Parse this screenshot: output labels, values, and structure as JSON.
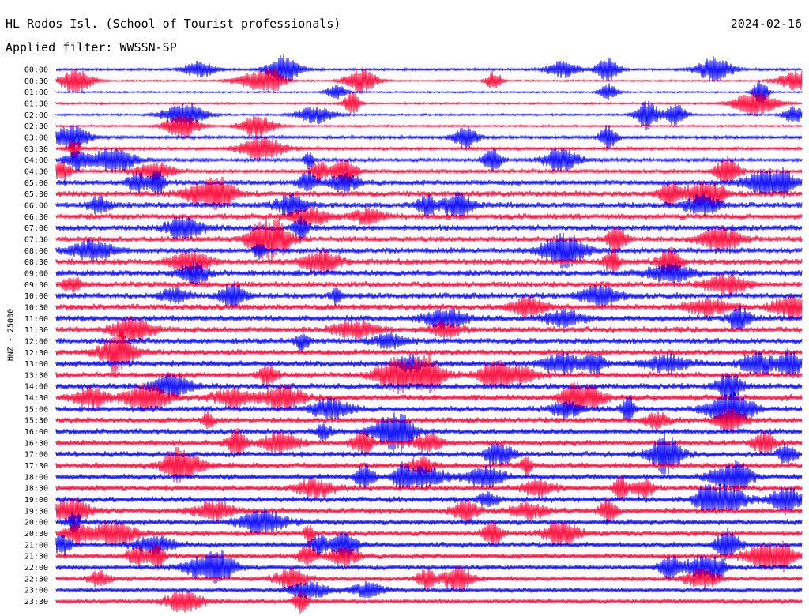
{
  "header": {
    "station": "HL Rodos Isl. (School of Tourist professionals)",
    "date": "2024-02-16",
    "filter": "Applied filter: WWSSN-SP"
  },
  "axis": {
    "ylabel": "HNZ - 25000"
  },
  "chart_data": {
    "type": "line",
    "description_kind": "helicorder",
    "series": [
      {
        "name": "00:00",
        "color": "#0000ff",
        "amplitude": 0.35
      },
      {
        "name": "00:30",
        "color": "#ff0033",
        "amplitude": 0.25
      },
      {
        "name": "01:00",
        "color": "#0000ff",
        "amplitude": 0.25
      },
      {
        "name": "01:30",
        "color": "#ff0033",
        "amplitude": 0.3
      },
      {
        "name": "02:00",
        "color": "#0000ff",
        "amplitude": 0.3
      },
      {
        "name": "02:30",
        "color": "#ff0033",
        "amplitude": 0.3
      },
      {
        "name": "03:00",
        "color": "#0000ff",
        "amplitude": 0.45
      },
      {
        "name": "03:30",
        "color": "#ff0033",
        "amplitude": 0.45
      },
      {
        "name": "04:00",
        "color": "#0000ff",
        "amplitude": 0.5
      },
      {
        "name": "04:30",
        "color": "#ff0033",
        "amplitude": 0.55
      },
      {
        "name": "05:00",
        "color": "#0000ff",
        "amplitude": 0.75
      },
      {
        "name": "05:30",
        "color": "#ff0033",
        "amplitude": 0.85
      },
      {
        "name": "06:00",
        "color": "#0000ff",
        "amplitude": 0.85
      },
      {
        "name": "06:30",
        "color": "#ff0033",
        "amplitude": 0.8
      },
      {
        "name": "07:00",
        "color": "#0000ff",
        "amplitude": 0.8
      },
      {
        "name": "07:30",
        "color": "#ff0033",
        "amplitude": 0.8
      },
      {
        "name": "08:00",
        "color": "#0000ff",
        "amplitude": 0.8
      },
      {
        "name": "08:30",
        "color": "#ff0033",
        "amplitude": 0.85
      },
      {
        "name": "09:00",
        "color": "#0000ff",
        "amplitude": 0.85
      },
      {
        "name": "09:30",
        "color": "#ff0033",
        "amplitude": 0.85
      },
      {
        "name": "10:00",
        "color": "#0000ff",
        "amplitude": 0.85
      },
      {
        "name": "10:30",
        "color": "#ff0033",
        "amplitude": 0.85
      },
      {
        "name": "11:00",
        "color": "#0000ff",
        "amplitude": 0.85
      },
      {
        "name": "11:30",
        "color": "#ff0033",
        "amplitude": 0.85
      },
      {
        "name": "12:00",
        "color": "#0000ff",
        "amplitude": 0.85
      },
      {
        "name": "12:30",
        "color": "#ff0033",
        "amplitude": 0.85
      },
      {
        "name": "13:00",
        "color": "#0000ff",
        "amplitude": 0.85
      },
      {
        "name": "13:30",
        "color": "#ff0033",
        "amplitude": 0.85
      },
      {
        "name": "14:00",
        "color": "#0000ff",
        "amplitude": 0.85
      },
      {
        "name": "14:30",
        "color": "#ff0033",
        "amplitude": 0.85
      },
      {
        "name": "15:00",
        "color": "#0000ff",
        "amplitude": 0.8
      },
      {
        "name": "15:30",
        "color": "#ff0033",
        "amplitude": 0.8
      },
      {
        "name": "16:00",
        "color": "#0000ff",
        "amplitude": 0.8
      },
      {
        "name": "16:30",
        "color": "#ff0033",
        "amplitude": 0.8
      },
      {
        "name": "17:00",
        "color": "#0000ff",
        "amplitude": 0.8
      },
      {
        "name": "17:30",
        "color": "#ff0033",
        "amplitude": 0.8
      },
      {
        "name": "18:00",
        "color": "#0000ff",
        "amplitude": 0.8
      },
      {
        "name": "18:30",
        "color": "#ff0033",
        "amplitude": 0.8
      },
      {
        "name": "19:00",
        "color": "#0000ff",
        "amplitude": 0.8
      },
      {
        "name": "19:30",
        "color": "#ff0033",
        "amplitude": 0.8
      },
      {
        "name": "20:00",
        "color": "#0000ff",
        "amplitude": 0.8
      },
      {
        "name": "20:30",
        "color": "#ff0033",
        "amplitude": 0.75
      },
      {
        "name": "21:00",
        "color": "#0000ff",
        "amplitude": 0.75
      },
      {
        "name": "21:30",
        "color": "#ff0033",
        "amplitude": 0.75
      },
      {
        "name": "22:00",
        "color": "#0000ff",
        "amplitude": 0.7
      },
      {
        "name": "22:30",
        "color": "#ff0033",
        "amplitude": 0.65
      },
      {
        "name": "23:00",
        "color": "#0000ff",
        "amplitude": 0.6
      },
      {
        "name": "23:30",
        "color": "#ff0033",
        "amplitude": 0.6
      }
    ]
  }
}
